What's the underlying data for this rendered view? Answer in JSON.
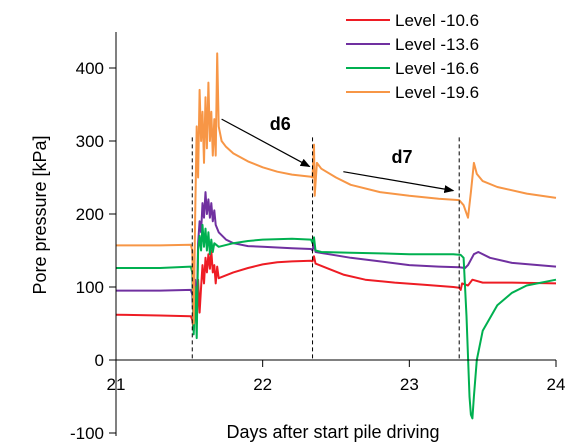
{
  "chart_data": {
    "type": "line",
    "xlabel": "Days after start pile driving",
    "ylabel": "Pore pressure [kPa]",
    "xlim": [
      21,
      24
    ],
    "ylim": [
      -100,
      450
    ],
    "xticks": [
      21,
      22,
      23,
      24
    ],
    "yticks": [
      -100,
      0,
      100,
      200,
      300,
      400
    ],
    "grid": false,
    "legend_position": "top-right",
    "vlines": [
      21.52,
      22.34,
      23.34
    ],
    "annotations": [
      {
        "text": "d6",
        "x": 22.12,
        "y": 315,
        "arrow_from": [
          21.72,
          330
        ],
        "arrow_to": [
          22.32,
          265
        ]
      },
      {
        "text": "d7",
        "x": 22.95,
        "y": 270,
        "arrow_from": [
          22.55,
          258
        ],
        "arrow_to": [
          23.3,
          232
        ]
      }
    ],
    "series": [
      {
        "name": "Level -10.6",
        "color": "#ee1c24",
        "points": [
          [
            21,
            62
          ],
          [
            21.3,
            61
          ],
          [
            21.51,
            60
          ],
          [
            21.52,
            55
          ],
          [
            21.53,
            40
          ],
          [
            21.54,
            80
          ],
          [
            21.55,
            50
          ],
          [
            21.56,
            110
          ],
          [
            21.57,
            65
          ],
          [
            21.58,
            100
          ],
          [
            21.59,
            130
          ],
          [
            21.6,
            105
          ],
          [
            21.61,
            140
          ],
          [
            21.62,
            120
          ],
          [
            21.63,
            145
          ],
          [
            21.64,
            125
          ],
          [
            21.65,
            150
          ],
          [
            21.66,
            120
          ],
          [
            21.67,
            130
          ],
          [
            21.68,
            105
          ],
          [
            21.69,
            128
          ],
          [
            21.7,
            112
          ],
          [
            21.8,
            120
          ],
          [
            21.9,
            126
          ],
          [
            22.0,
            131
          ],
          [
            22.1,
            134
          ],
          [
            22.2,
            135
          ],
          [
            22.33,
            136
          ],
          [
            22.34,
            135
          ],
          [
            22.35,
            142
          ],
          [
            22.36,
            132
          ],
          [
            22.45,
            125
          ],
          [
            22.55,
            117
          ],
          [
            22.7,
            110
          ],
          [
            22.9,
            106
          ],
          [
            23.1,
            103
          ],
          [
            23.3,
            100
          ],
          [
            23.34,
            99
          ],
          [
            23.35,
            96
          ],
          [
            23.36,
            105
          ],
          [
            23.4,
            102
          ],
          [
            23.43,
            110
          ],
          [
            23.5,
            106
          ],
          [
            23.7,
            106
          ],
          [
            24,
            105
          ]
        ]
      },
      {
        "name": "Level -13.6",
        "color": "#7030a0",
        "points": [
          [
            21,
            95
          ],
          [
            21.3,
            95
          ],
          [
            21.51,
            96
          ],
          [
            21.52,
            90
          ],
          [
            21.53,
            45
          ],
          [
            21.54,
            110
          ],
          [
            21.55,
            60
          ],
          [
            21.56,
            160
          ],
          [
            21.57,
            190
          ],
          [
            21.58,
            175
          ],
          [
            21.59,
            215
          ],
          [
            21.6,
            195
          ],
          [
            21.61,
            230
          ],
          [
            21.62,
            200
          ],
          [
            21.63,
            220
          ],
          [
            21.64,
            195
          ],
          [
            21.65,
            215
          ],
          [
            21.66,
            190
          ],
          [
            21.67,
            205
          ],
          [
            21.68,
            185
          ],
          [
            21.7,
            175
          ],
          [
            21.75,
            165
          ],
          [
            21.8,
            160
          ],
          [
            21.9,
            156
          ],
          [
            22.0,
            155
          ],
          [
            22.2,
            153
          ],
          [
            22.33,
            152
          ],
          [
            22.34,
            150
          ],
          [
            22.35,
            160
          ],
          [
            22.36,
            148
          ],
          [
            22.45,
            145
          ],
          [
            22.6,
            140
          ],
          [
            22.8,
            135
          ],
          [
            23.0,
            130
          ],
          [
            23.2,
            128
          ],
          [
            23.34,
            127
          ],
          [
            23.38,
            126
          ],
          [
            23.4,
            130
          ],
          [
            23.44,
            145
          ],
          [
            23.47,
            148
          ],
          [
            23.55,
            140
          ],
          [
            23.7,
            133
          ],
          [
            24,
            128
          ]
        ]
      },
      {
        "name": "Level -16.6",
        "color": "#00b050",
        "points": [
          [
            21,
            126
          ],
          [
            21.3,
            126
          ],
          [
            21.51,
            128
          ],
          [
            21.52,
            120
          ],
          [
            21.53,
            35
          ],
          [
            21.54,
            100
          ],
          [
            21.55,
            30
          ],
          [
            21.56,
            150
          ],
          [
            21.57,
            170
          ],
          [
            21.58,
            150
          ],
          [
            21.59,
            185
          ],
          [
            21.6,
            155
          ],
          [
            21.61,
            180
          ],
          [
            21.62,
            150
          ],
          [
            21.63,
            175
          ],
          [
            21.64,
            145
          ],
          [
            21.65,
            165
          ],
          [
            21.66,
            148
          ],
          [
            21.67,
            160
          ],
          [
            21.7,
            155
          ],
          [
            21.8,
            160
          ],
          [
            21.9,
            163
          ],
          [
            22.0,
            165
          ],
          [
            22.2,
            166
          ],
          [
            22.33,
            165
          ],
          [
            22.34,
            160
          ],
          [
            22.35,
            168
          ],
          [
            22.36,
            150
          ],
          [
            22.4,
            148
          ],
          [
            22.6,
            147
          ],
          [
            22.8,
            146
          ],
          [
            23.0,
            145
          ],
          [
            23.3,
            145
          ],
          [
            23.35,
            144
          ],
          [
            23.37,
            140
          ],
          [
            23.39,
            60
          ],
          [
            23.41,
            -50
          ],
          [
            23.42,
            -75
          ],
          [
            23.43,
            -80
          ],
          [
            23.44,
            -50
          ],
          [
            23.46,
            0
          ],
          [
            23.5,
            40
          ],
          [
            23.6,
            75
          ],
          [
            23.7,
            92
          ],
          [
            23.8,
            102
          ],
          [
            24,
            110
          ]
        ]
      },
      {
        "name": "Level -19.6",
        "color": "#f79646",
        "points": [
          [
            21,
            157
          ],
          [
            21.3,
            157
          ],
          [
            21.51,
            158
          ],
          [
            21.52,
            150
          ],
          [
            21.53,
            50
          ],
          [
            21.54,
            200
          ],
          [
            21.55,
            320
          ],
          [
            21.56,
            250
          ],
          [
            21.57,
            370
          ],
          [
            21.58,
            300
          ],
          [
            21.59,
            340
          ],
          [
            21.6,
            270
          ],
          [
            21.61,
            360
          ],
          [
            21.62,
            290
          ],
          [
            21.63,
            380
          ],
          [
            21.64,
            300
          ],
          [
            21.65,
            340
          ],
          [
            21.66,
            280
          ],
          [
            21.67,
            330
          ],
          [
            21.68,
            280
          ],
          [
            21.69,
            420
          ],
          [
            21.7,
            320
          ],
          [
            21.72,
            300
          ],
          [
            21.75,
            292
          ],
          [
            21.8,
            283
          ],
          [
            21.9,
            272
          ],
          [
            22.0,
            264
          ],
          [
            22.1,
            258
          ],
          [
            22.2,
            254
          ],
          [
            22.33,
            251
          ],
          [
            22.34,
            250
          ],
          [
            22.35,
            295
          ],
          [
            22.355,
            225
          ],
          [
            22.37,
            270
          ],
          [
            22.4,
            262
          ],
          [
            22.5,
            250
          ],
          [
            22.6,
            240
          ],
          [
            22.8,
            230
          ],
          [
            23.0,
            225
          ],
          [
            23.2,
            221
          ],
          [
            23.34,
            219
          ],
          [
            23.37,
            212
          ],
          [
            23.4,
            195
          ],
          [
            23.42,
            230
          ],
          [
            23.44,
            270
          ],
          [
            23.46,
            255
          ],
          [
            23.5,
            245
          ],
          [
            23.6,
            237
          ],
          [
            23.8,
            228
          ],
          [
            24,
            222
          ]
        ]
      }
    ]
  }
}
